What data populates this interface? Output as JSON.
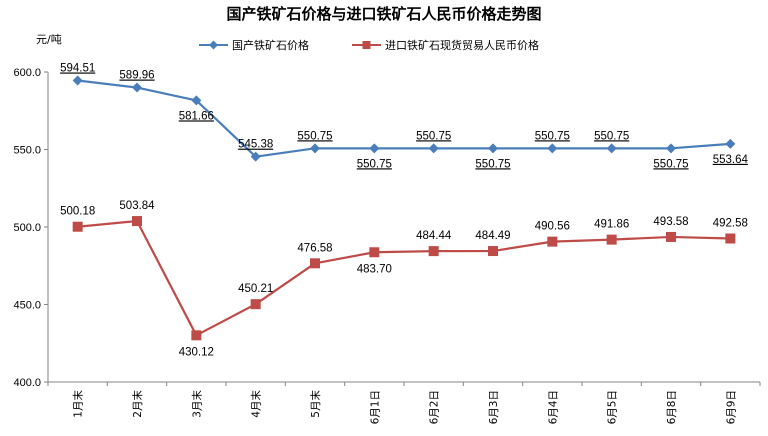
{
  "chart_data": {
    "type": "line",
    "title": "国产铁矿石价格与进口铁矿石人民币价格走势图",
    "ylabel": "元/吨",
    "ylim": [
      400,
      600
    ],
    "yticks": [
      "400.0",
      "450.0",
      "500.0",
      "550.0",
      "600.0"
    ],
    "categories": [
      "1月末",
      "2月末",
      "3月末",
      "4月末",
      "5月末",
      "6月1日",
      "6月2日",
      "6月3日",
      "6月4日",
      "6月5日",
      "6月8日",
      "6月9日"
    ],
    "legend_position": "top",
    "grid": false,
    "series": [
      {
        "name": "国产铁矿石价格",
        "color": "#4a7ebb",
        "marker": "diamond",
        "values": [
          594.51,
          589.96,
          581.66,
          545.38,
          550.75,
          550.75,
          550.75,
          550.75,
          550.75,
          550.75,
          550.75,
          553.64
        ],
        "labels": [
          "594.51",
          "589.96",
          "581.66",
          "545.38",
          "550.75",
          "550.75",
          "550.75",
          "550.75",
          "550.75",
          "550.75",
          "550.75",
          "553.64"
        ]
      },
      {
        "name": "进口铁矿石现货贸易人民币价格",
        "color": "#be4b48",
        "marker": "square",
        "values": [
          500.18,
          503.84,
          430.12,
          450.21,
          476.58,
          483.7,
          484.44,
          484.49,
          490.56,
          491.86,
          493.58,
          492.58
        ],
        "labels": [
          "500.18",
          "503.84",
          "430.12",
          "450.21",
          "476.58",
          "483.70",
          "484.44",
          "484.49",
          "490.56",
          "491.86",
          "493.58",
          "492.58"
        ]
      }
    ]
  }
}
